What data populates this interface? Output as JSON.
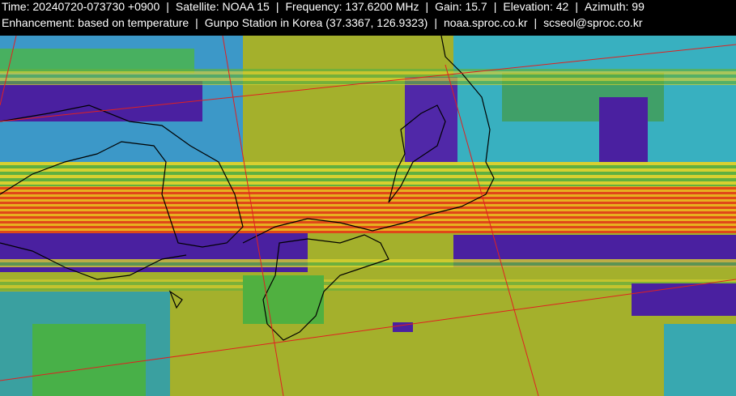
{
  "header": {
    "line1": [
      "Time: 20240720-073730 +0900",
      "Satellite: NOAA 15",
      "Frequency: 137.6200 MHz",
      "Gain: 15.7",
      "Elevation: 42",
      "Azimuth: 99"
    ],
    "line2": [
      "Enhancement: based on temperature",
      "Gunpo Station in Korea (37.3367, 126.9323)",
      "noaa.sproc.co.kr",
      "scseol@sproc.co.kr"
    ],
    "separator": "|"
  }
}
